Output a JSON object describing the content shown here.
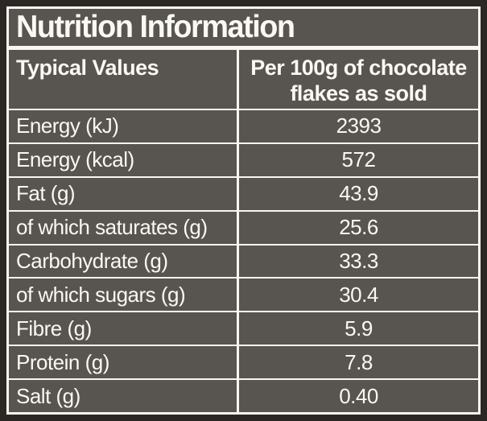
{
  "label": {
    "title": "Nutrition Information",
    "columns": {
      "typical_values": "Typical Values",
      "per_100g": "Per 100g of chocolate flakes as sold"
    },
    "rows": [
      {
        "label": "Energy (kJ)",
        "value": "2393"
      },
      {
        "label": "Energy (kcal)",
        "value": "572"
      },
      {
        "label": "Fat (g)",
        "value": "43.9"
      },
      {
        "label": "of which saturates (g)",
        "value": "25.6"
      },
      {
        "label": "Carbohydrate (g)",
        "value": "33.3"
      },
      {
        "label": "of which sugars (g)",
        "value": "30.4"
      },
      {
        "label": "Fibre (g)",
        "value": "5.9"
      },
      {
        "label": "Protein (g)",
        "value": "7.8"
      },
      {
        "label": "Salt (g)",
        "value": "0.40"
      }
    ],
    "colors": {
      "background": "#585450",
      "frame": "#2b2724",
      "rule": "#f9f6f0",
      "text": "#faf8f2"
    }
  }
}
